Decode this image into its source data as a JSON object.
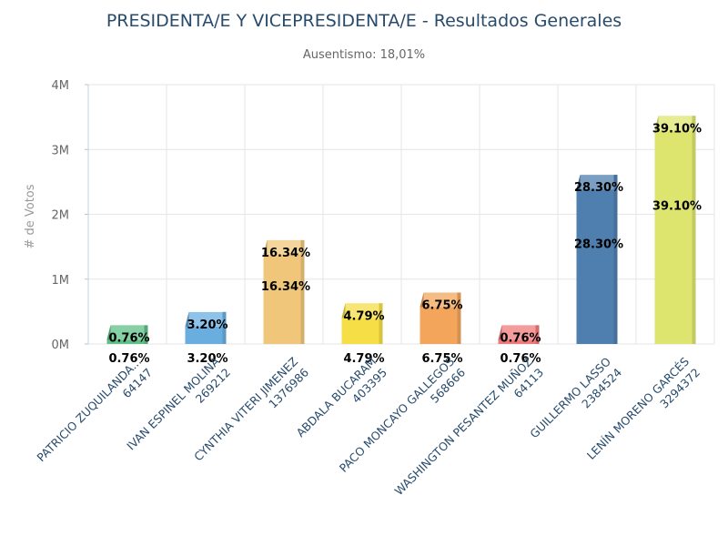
{
  "header": {
    "title": "PRESIDENTA/E Y VICEPRESIDENTA/E - Resultados Generales",
    "subtitle": "Ausentismo: 18,01%"
  },
  "chart_data": {
    "type": "bar",
    "title": "PRESIDENTA/E Y VICEPRESIDENTA/E - Resultados Generales",
    "subtitle": "Ausentismo: 18,01%",
    "xlabel": "",
    "ylabel": "# de Votos",
    "ylim": [
      0,
      4000000
    ],
    "yticks": [
      {
        "value": 0,
        "label": "0M"
      },
      {
        "value": 1000000,
        "label": "1M"
      },
      {
        "value": 2000000,
        "label": "2M"
      },
      {
        "value": 3000000,
        "label": "3M"
      },
      {
        "value": 4000000,
        "label": "4M"
      }
    ],
    "grid": true,
    "categories": [
      {
        "name": "PATRICIO ZUQUILANDA...",
        "votes_label": "64147"
      },
      {
        "name": "IVAN ESPINEL MOLINA",
        "votes_label": "269212"
      },
      {
        "name": "CYNTHIA VITERI JIMENEZ",
        "votes_label": "1376986"
      },
      {
        "name": "ABDALA BUCARAM",
        "votes_label": "403395"
      },
      {
        "name": "PACO MONCAYO GALLEGOS",
        "votes_label": "568666"
      },
      {
        "name": "WASHINGTON PESANTEZ MUÑOZ",
        "votes_label": "64113"
      },
      {
        "name": "GUILLERMO LASSO",
        "votes_label": "2384524"
      },
      {
        "name": "LENÍN MORENO GARCÉS",
        "votes_label": "3294372"
      }
    ],
    "values": [
      64147,
      269212,
      1376986,
      403395,
      568666,
      64113,
      2384524,
      3294372
    ],
    "percent_labels": [
      "0.76%",
      "3.20%",
      "16.34%",
      "4.79%",
      "6.75%",
      "0.76%",
      "28.30%",
      "39.10%"
    ],
    "colors": [
      "#5fbf87",
      "#6aaee0",
      "#f0c77a",
      "#f6de46",
      "#f2a55b",
      "#f07a7a",
      "#4f7fae",
      "#dde56e"
    ]
  }
}
